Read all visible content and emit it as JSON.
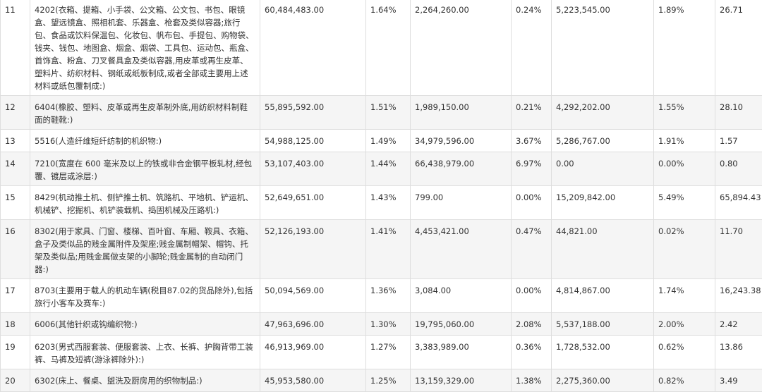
{
  "rows": [
    {
      "rank": "11",
      "product": "4202(衣箱、提箱、小手袋、公文箱、公文包、书包、眼镜盒、望远镜盒、照相机套、乐器盒、枪套及类似容器;旅行包、食品或饮料保温包、化妆包、帆布包、手提包、购物袋、钱夹、钱包、地图盒、烟盒、烟袋、工具包、运动包、瓶盒、首饰盒、粉盒、刀叉餐具盒及类似容器,用皮革或再生皮革、塑料片、纺织材料、钢纸或纸板制成,或者全部或主要用上述材料或纸包覆制成:)",
      "v1": "60,484,483.00",
      "p1": "1.64%",
      "v2": "2,264,260.00",
      "p2": "0.24%",
      "v3": "5,223,545.00",
      "p3": "1.89%",
      "ratio": "26.71"
    },
    {
      "rank": "12",
      "product": "6404(橡胶、塑料、皮革或再生皮革制外底,用纺织材料制鞋面的鞋靴:)",
      "v1": "55,895,592.00",
      "p1": "1.51%",
      "v2": "1,989,150.00",
      "p2": "0.21%",
      "v3": "4,292,202.00",
      "p3": "1.55%",
      "ratio": "28.10"
    },
    {
      "rank": "13",
      "product": "5516(人造纤维短纤纺制的机织物:)",
      "v1": "54,988,125.00",
      "p1": "1.49%",
      "v2": "34,979,596.00",
      "p2": "3.67%",
      "v3": "5,286,767.00",
      "p3": "1.91%",
      "ratio": "1.57"
    },
    {
      "rank": "14",
      "product": "7210(宽度在 600 毫米及以上的铁或非合金钢平板轧材,经包覆、镀层或涂层:)",
      "v1": "53,107,403.00",
      "p1": "1.44%",
      "v2": "66,438,979.00",
      "p2": "6.97%",
      "v3": "0.00",
      "p3": "0.00%",
      "ratio": "0.80"
    },
    {
      "rank": "15",
      "product": "8429(机动推土机、侧铲推土机、筑路机、平地机、铲运机、机械铲、挖掘机、机铲装载机、捣固机械及压路机:)",
      "v1": "52,649,651.00",
      "p1": "1.43%",
      "v2": "799.00",
      "p2": "0.00%",
      "v3": "15,209,842.00",
      "p3": "5.49%",
      "ratio": "65,894.43"
    },
    {
      "rank": "16",
      "product": "8302(用于家具、门窗、楼梯、百叶窗、车厢、鞍具、衣箱、盒子及类似品的贱金属附件及架座;贱金属制帽架、帽钩、托架及类似品;用贱金属做支架的小脚轮;贱金属制的自动闭门器:)",
      "v1": "52,126,193.00",
      "p1": "1.41%",
      "v2": "4,453,421.00",
      "p2": "0.47%",
      "v3": "44,821.00",
      "p3": "0.02%",
      "ratio": "11.70"
    },
    {
      "rank": "17",
      "product": "8703(主要用于载人的机动车辆(税目87.02的货品除外),包括旅行小客车及赛车:)",
      "v1": "50,094,569.00",
      "p1": "1.36%",
      "v2": "3,084.00",
      "p2": "0.00%",
      "v3": "4,814,867.00",
      "p3": "1.74%",
      "ratio": "16,243.38"
    },
    {
      "rank": "18",
      "product": "6006(其他针织或钩编织物:)",
      "v1": "47,963,696.00",
      "p1": "1.30%",
      "v2": "19,795,060.00",
      "p2": "2.08%",
      "v3": "5,537,188.00",
      "p3": "2.00%",
      "ratio": "2.42"
    },
    {
      "rank": "19",
      "product": "6203(男式西服套装、便服套装、上衣、长裤、护胸背带工装裤、马裤及短裤(游泳裤除外):)",
      "v1": "46,913,969.00",
      "p1": "1.27%",
      "v2": "3,383,989.00",
      "p2": "0.36%",
      "v3": "1,728,532.00",
      "p3": "0.62%",
      "ratio": "13.86"
    },
    {
      "rank": "20",
      "product": "6302(床上、餐桌、盥洗及厨房用的织物制品:)",
      "v1": "45,953,580.00",
      "p1": "1.25%",
      "v2": "13,159,329.00",
      "p2": "1.38%",
      "v3": "2,275,360.00",
      "p3": "0.82%",
      "ratio": "3.49"
    }
  ]
}
